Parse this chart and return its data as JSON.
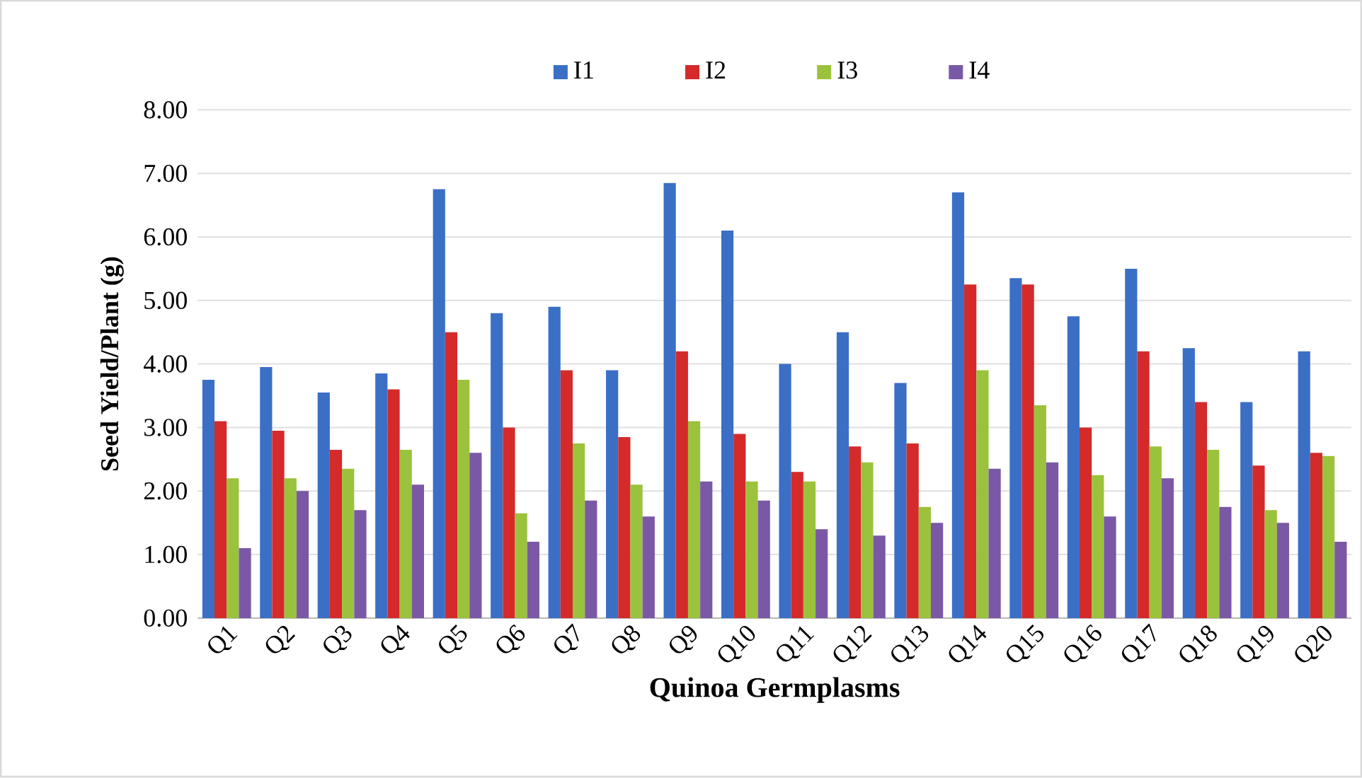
{
  "chart_data": {
    "type": "bar",
    "xlabel": "Quinoa Germplasms",
    "ylabel": "Seed Yield/Plant (g)",
    "categories": [
      "Q1",
      "Q2",
      "Q3",
      "Q4",
      "Q5",
      "Q6",
      "Q7",
      "Q8",
      "Q9",
      "Q10",
      "Q11",
      "Q12",
      "Q13",
      "Q14",
      "Q15",
      "Q16",
      "Q17",
      "Q18",
      "Q19",
      "Q20"
    ],
    "series": [
      {
        "name": "I1",
        "color": "#3b6fc6",
        "values": [
          3.75,
          3.95,
          3.55,
          3.85,
          6.75,
          4.8,
          4.9,
          3.9,
          6.85,
          6.1,
          4.0,
          4.5,
          3.7,
          6.7,
          5.35,
          4.75,
          5.5,
          4.25,
          3.4,
          4.2
        ]
      },
      {
        "name": "I2",
        "color": "#d42a2a",
        "values": [
          3.1,
          2.95,
          2.65,
          3.6,
          4.5,
          3.0,
          3.9,
          2.85,
          4.2,
          2.9,
          2.3,
          2.7,
          2.75,
          5.25,
          5.25,
          3.0,
          4.2,
          3.4,
          2.4,
          2.6
        ]
      },
      {
        "name": "I3",
        "color": "#9bc23c",
        "values": [
          2.2,
          2.2,
          2.35,
          2.65,
          3.75,
          1.65,
          2.75,
          2.1,
          3.1,
          2.15,
          2.15,
          2.45,
          1.75,
          3.9,
          3.35,
          2.25,
          2.7,
          2.65,
          1.7,
          2.55
        ]
      },
      {
        "name": "I4",
        "color": "#7a58a6",
        "values": [
          1.1,
          2.0,
          1.7,
          2.1,
          2.6,
          1.2,
          1.85,
          1.6,
          2.15,
          1.85,
          1.4,
          1.3,
          1.5,
          2.35,
          2.45,
          1.6,
          2.2,
          1.75,
          1.5,
          1.2
        ]
      }
    ],
    "ylim": [
      0,
      8
    ],
    "yticks": [
      {
        "value": 0,
        "label": "0.00"
      },
      {
        "value": 1,
        "label": "1.00"
      },
      {
        "value": 2,
        "label": "2.00"
      },
      {
        "value": 3,
        "label": "3.00"
      },
      {
        "value": 4,
        "label": "4.00"
      },
      {
        "value": 5,
        "label": "5.00"
      },
      {
        "value": 6,
        "label": "6.00"
      },
      {
        "value": 7,
        "label": "7.00"
      },
      {
        "value": 8,
        "label": "8.00"
      }
    ],
    "grid": "y",
    "legend": "top"
  }
}
